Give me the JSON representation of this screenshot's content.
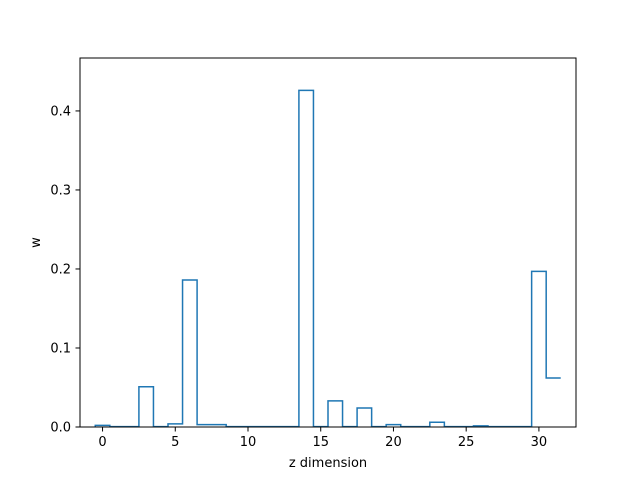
{
  "chart_data": {
    "type": "bar",
    "style": "step",
    "title": "",
    "xlabel": "z dimension",
    "ylabel": "w",
    "xlim": [
      -1.55,
      32.55
    ],
    "ylim": [
      0,
      0.467
    ],
    "x_ticks": [
      0,
      5,
      10,
      15,
      20,
      25,
      30
    ],
    "y_ticks": [
      0.0,
      0.1,
      0.2,
      0.3,
      0.4
    ],
    "grid": false,
    "line_color": "#1f77b4",
    "categories": [
      0,
      1,
      2,
      3,
      4,
      5,
      6,
      7,
      8,
      9,
      10,
      11,
      12,
      13,
      14,
      15,
      16,
      17,
      18,
      19,
      20,
      21,
      22,
      23,
      24,
      25,
      26,
      27,
      28,
      29,
      30,
      31
    ],
    "values": [
      0.002,
      0.0005,
      0.0005,
      0.051,
      0.0005,
      0.004,
      0.186,
      0.003,
      0.003,
      0.0005,
      0.0005,
      0.0005,
      0.0005,
      0.0005,
      0.426,
      0.0005,
      0.033,
      0.0005,
      0.024,
      0.0005,
      0.003,
      0.0005,
      0.0005,
      0.006,
      0.0005,
      0.0005,
      0.0015,
      0.0005,
      0.0005,
      0.0005,
      0.197,
      0.062
    ]
  }
}
